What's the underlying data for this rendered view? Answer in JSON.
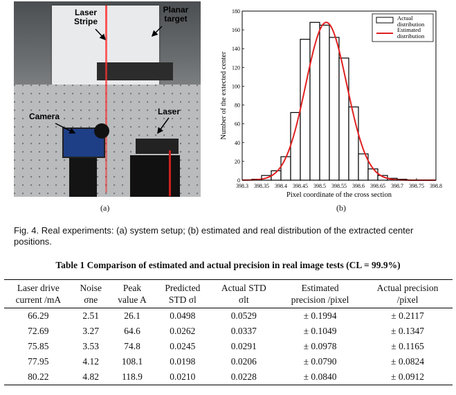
{
  "panel_a": {
    "labels": {
      "laser_stripe": "Laser Stripe",
      "planar_target": "Planar target",
      "camera": "Camera",
      "laser": "Laser"
    },
    "caption": "(a)"
  },
  "panel_b": {
    "caption": "(b)"
  },
  "chart_data": {
    "type": "bar",
    "xlabel": "Pixel coordinate of the cross section",
    "ylabel": "Number of the extected center",
    "xlim": [
      398.3,
      398.8
    ],
    "ylim": [
      0,
      180
    ],
    "xticks": [
      "398.3",
      "398.35",
      "398.4",
      "398.45",
      "398.5",
      "398.55",
      "398.6",
      "398.65",
      "398.7",
      "398.75",
      "398.8"
    ],
    "yticks": [
      "0",
      "20",
      "40",
      "60",
      "80",
      "100",
      "120",
      "140",
      "160",
      "180"
    ],
    "legend": {
      "placement": "top-right",
      "actual": "Actual distribution",
      "estimated": "Estimated distribution"
    },
    "bin_width": 0.025,
    "bin_starts": [
      398.325,
      398.35,
      398.375,
      398.4,
      398.425,
      398.45,
      398.475,
      398.5,
      398.525,
      398.55,
      398.575,
      398.6,
      398.625,
      398.65,
      398.675,
      398.7,
      398.725
    ],
    "actual_counts": [
      1,
      5,
      10,
      25,
      72,
      150,
      168,
      165,
      152,
      130,
      78,
      28,
      12,
      5,
      2,
      1,
      0
    ],
    "estimated": {
      "mean": 398.517,
      "sigma": 0.0529,
      "peak": 168
    },
    "grid": false,
    "colors": {
      "bars": "#000000",
      "curve": "#e02020"
    }
  },
  "figure_caption": "Fig. 4. Real experiments: (a) system setup; (b) estimated and real distribution of the extracted center positions.",
  "table": {
    "title": "Table 1 Comparison of estimated and actual precision in real image tests (CL = 99.9%)",
    "headers": [
      [
        "Laser drive",
        "current /mA"
      ],
      [
        "Noise",
        "σne"
      ],
      [
        "Peak",
        "value A"
      ],
      [
        "Predicted",
        "STD σl"
      ],
      [
        "Actual STD",
        "σlt"
      ],
      [
        "Estimated",
        "precision /pixel"
      ],
      [
        "Actual precision",
        "/pixel"
      ]
    ],
    "rows": [
      [
        "66.29",
        "2.51",
        "26.1",
        "0.0498",
        "0.0529",
        "± 0.1994",
        "± 0.2117"
      ],
      [
        "72.69",
        "3.27",
        "64.6",
        "0.0262",
        "0.0337",
        "± 0.1049",
        "± 0.1347"
      ],
      [
        "75.85",
        "3.53",
        "74.8",
        "0.0245",
        "0.0291",
        "± 0.0978",
        "± 0.1165"
      ],
      [
        "77.95",
        "4.12",
        "108.1",
        "0.0198",
        "0.0206",
        "± 0.0790",
        "± 0.0824"
      ],
      [
        "80.22",
        "4.82",
        "118.9",
        "0.0210",
        "0.0228",
        "± 0.0840",
        "± 0.0912"
      ]
    ]
  }
}
